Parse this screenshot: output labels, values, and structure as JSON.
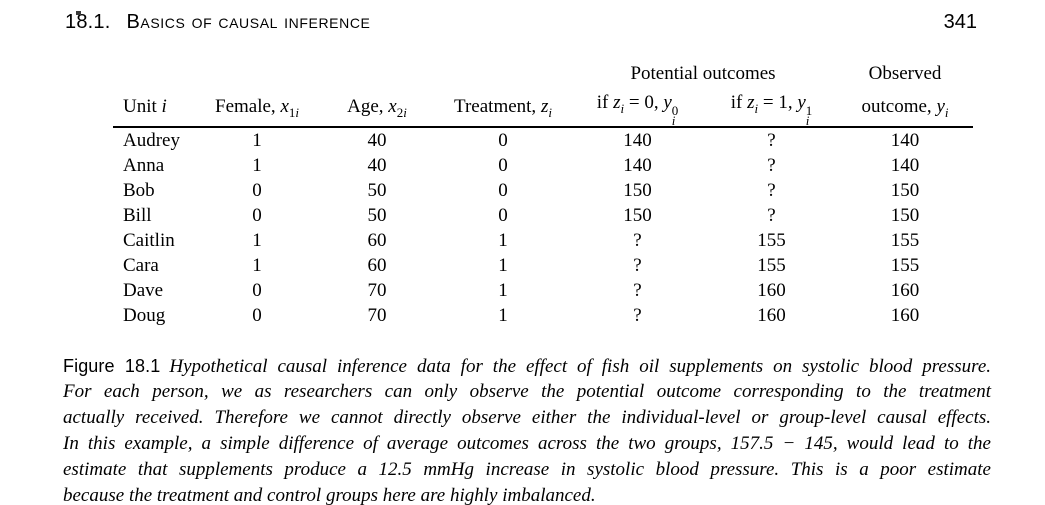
{
  "header": {
    "section_number": "18.1.",
    "section_title": "Basics of causal inference",
    "page_number": "341"
  },
  "table": {
    "headers": {
      "potential_outcomes": "Potential outcomes",
      "observed_line1": "Observed",
      "unit": {
        "text": "Unit ",
        "var": "i"
      },
      "female": {
        "text": "Female, ",
        "var": "x",
        "sub_num": "1",
        "sub_var": "i"
      },
      "age": {
        "text": "Age, ",
        "var": "x",
        "sub_num": "2",
        "sub_var": "i"
      },
      "treatment": {
        "text": "Treatment, ",
        "var": "z",
        "sub_var": "i"
      },
      "po0": {
        "if_text": "if ",
        "var": "z",
        "sub_var": "i",
        "eq_text": " = 0, ",
        "var2": "y",
        "sup2": "0",
        "sub2": "i"
      },
      "po1": {
        "if_text": "if ",
        "var": "z",
        "sub_var": "i",
        "eq_text": " = 1, ",
        "var2": "y",
        "sup2": "1",
        "sub2": "i"
      },
      "observed": {
        "text": "outcome, ",
        "var": "y",
        "sub_var": "i"
      }
    },
    "rows": [
      {
        "unit": "Audrey",
        "female": "1",
        "age": "40",
        "treatment": "0",
        "y0": "140",
        "y1": "?",
        "observed": "140"
      },
      {
        "unit": "Anna",
        "female": "1",
        "age": "40",
        "treatment": "0",
        "y0": "140",
        "y1": "?",
        "observed": "140"
      },
      {
        "unit": "Bob",
        "female": "0",
        "age": "50",
        "treatment": "0",
        "y0": "150",
        "y1": "?",
        "observed": "150"
      },
      {
        "unit": "Bill",
        "female": "0",
        "age": "50",
        "treatment": "0",
        "y0": "150",
        "y1": "?",
        "observed": "150"
      },
      {
        "unit": "Caitlin",
        "female": "1",
        "age": "60",
        "treatment": "1",
        "y0": "?",
        "y1": "155",
        "observed": "155"
      },
      {
        "unit": "Cara",
        "female": "1",
        "age": "60",
        "treatment": "1",
        "y0": "?",
        "y1": "155",
        "observed": "155"
      },
      {
        "unit": "Dave",
        "female": "0",
        "age": "70",
        "treatment": "1",
        "y0": "?",
        "y1": "160",
        "observed": "160"
      },
      {
        "unit": "Doug",
        "female": "0",
        "age": "70",
        "treatment": "1",
        "y0": "?",
        "y1": "160",
        "observed": "160"
      }
    ]
  },
  "caption": {
    "label": "Figure 18.1",
    "lines": [
      "Hypothetical causal inference data for the effect of fish oil supplements on systolic blood pressure.",
      "For each person, we as researchers can only observe the potential outcome corresponding to the treatment",
      "actually received. Therefore we cannot directly observe either the individual-level or group-level causal effects.",
      "In this example, a simple difference of average outcomes across the two groups, 157.5 − 145, would lead to the",
      "estimate that supplements produce a 12.5 mmHg increase in systolic blood pressure. This is a poor estimate",
      "because the treatment and control groups here are highly imbalanced."
    ]
  }
}
